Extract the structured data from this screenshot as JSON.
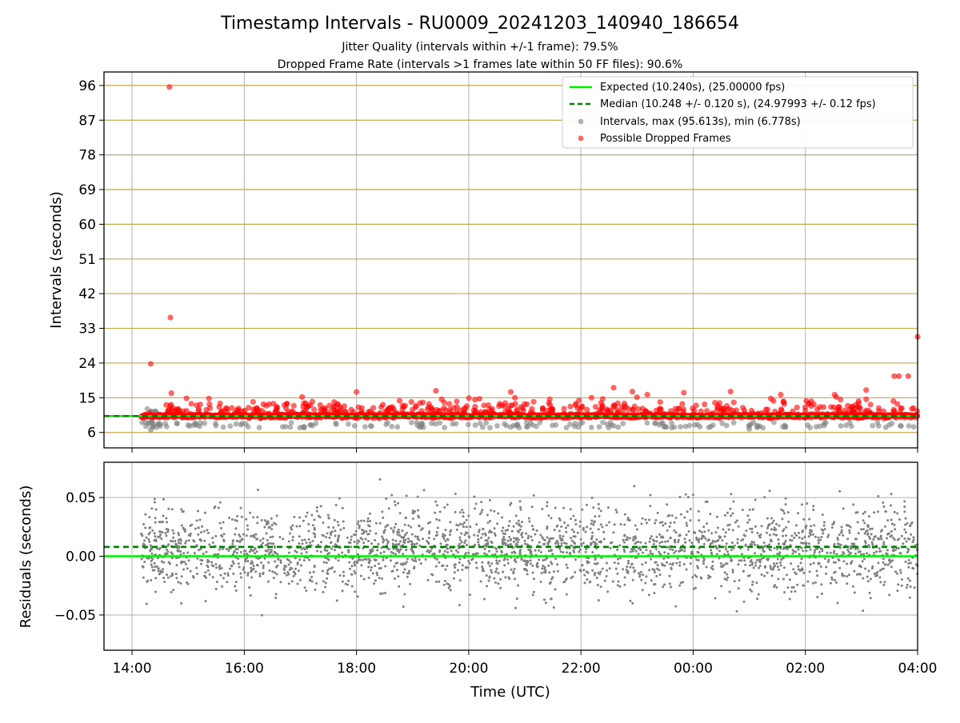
{
  "title": "Timestamp Intervals - RU0009_20241203_140940_186654",
  "subtitle_1": "Jitter Quality (intervals within +/-1 frame): 79.5%",
  "subtitle_2": "Dropped Frame Rate (intervals >1 frames late within 50 FF files): 90.6%",
  "colors": {
    "expected": "#00ee00",
    "median": "#008000",
    "intervals": "#808080",
    "dropped": "#ff0000",
    "gold_grid": "#c8a84b",
    "grid": "#b0b0b0"
  },
  "chart_data": [
    {
      "type": "scatter",
      "id": "intervals",
      "xlabel": "",
      "ylabel": "Intervals (seconds)",
      "x_ticks": [
        "14:00",
        "16:00",
        "18:00",
        "20:00",
        "22:00",
        "00:00",
        "02:00",
        "04:00"
      ],
      "x_range_hours": [
        13.5,
        28.0
      ],
      "y_ticks": [
        6,
        15,
        24,
        33,
        42,
        51,
        60,
        69,
        78,
        87,
        96
      ],
      "ylim": [
        2.0,
        99.5
      ],
      "grid": true,
      "legend_position": "top-right",
      "legend": [
        {
          "label": "Expected (10.240s), (25.00000 fps)",
          "kind": "solid-line",
          "color_key": "expected"
        },
        {
          "label": "Median (10.248 +/- 0.120 s), (24.97993 +/- 0.12 fps)",
          "kind": "dashed-line",
          "color_key": "median"
        },
        {
          "label": "Intervals, max (95.613s), min (6.778s)",
          "kind": "dot",
          "color_key": "intervals"
        },
        {
          "label": "Possible Dropped Frames",
          "kind": "dot",
          "color_key": "dropped"
        }
      ],
      "expected_value": 10.24,
      "median_value": 10.248,
      "band_value": 10.3,
      "series": [
        {
          "name": "Possible Dropped Frames",
          "notable_points": [
            {
              "x": "14:40",
              "y": 95.6
            },
            {
              "x": "14:41",
              "y": 35.8
            },
            {
              "x": "14:20",
              "y": 23.8
            },
            {
              "x": "04:00",
              "y": 30.8
            },
            {
              "x": "03:35",
              "y": 20.6
            },
            {
              "x": "03:40",
              "y": 20.6
            },
            {
              "x": "03:50",
              "y": 20.6
            },
            {
              "x": "14:42",
              "y": 16.2
            },
            {
              "x": "18:00",
              "y": 16.5
            },
            {
              "x": "19:25",
              "y": 16.8
            },
            {
              "x": "20:45",
              "y": 16.5
            },
            {
              "x": "22:35",
              "y": 17.6
            },
            {
              "x": "22:55",
              "y": 16.6
            },
            {
              "x": "23:50",
              "y": 16.3
            },
            {
              "x": "00:40",
              "y": 16.6
            },
            {
              "x": "03:05",
              "y": 17.0
            }
          ]
        },
        {
          "name": "Intervals",
          "notable_points": [
            {
              "x": "14:20",
              "y": 6.7
            },
            {
              "x": "15:00",
              "y": 7.9
            },
            {
              "x": "23:30",
              "y": 7.5
            },
            {
              "x": "01:00",
              "y": 6.9
            },
            {
              "x": "02:20",
              "y": 7.8
            }
          ]
        }
      ]
    },
    {
      "type": "scatter",
      "id": "residuals",
      "xlabel": "Time (UTC)",
      "ylabel": "Residuals (seconds)",
      "x_ticks": [
        "14:00",
        "16:00",
        "18:00",
        "20:00",
        "22:00",
        "00:00",
        "02:00",
        "04:00"
      ],
      "x_range_hours": [
        13.5,
        28.0
      ],
      "y_ticks": [
        "−0.05",
        "0.00",
        "0.05"
      ],
      "y_tick_values": [
        -0.05,
        0.0,
        0.05
      ],
      "ylim": [
        -0.08,
        0.08
      ],
      "grid": true,
      "expected_value": 0.0,
      "median_value": 0.008,
      "series": [
        {
          "name": "Residuals",
          "center": 0.006,
          "spread": 0.018,
          "range": [
            -0.08,
            0.08
          ]
        }
      ]
    }
  ]
}
